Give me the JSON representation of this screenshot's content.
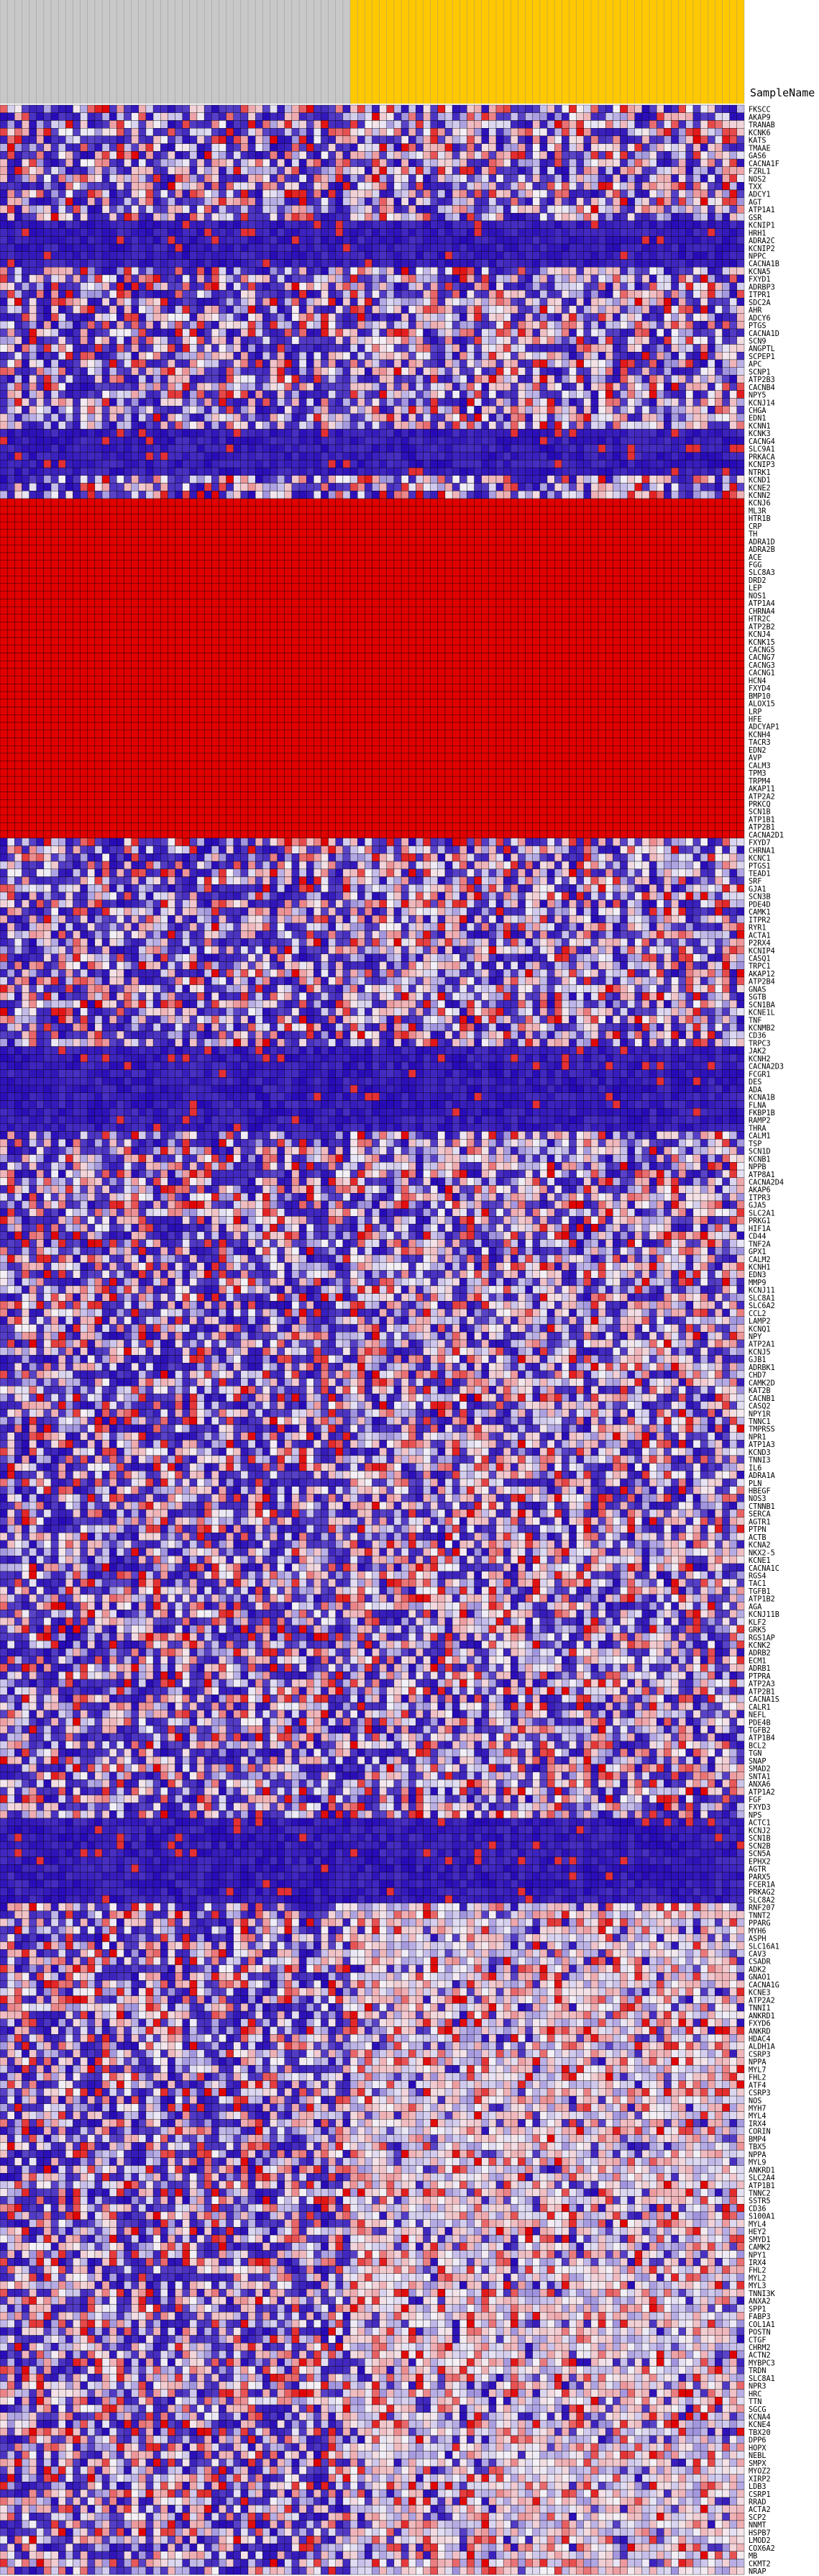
{
  "chart_data": {
    "type": "heatmap",
    "row_header": "SampleName",
    "colors": {
      "low": "#1e00b4",
      "mid": "#f4f2f8",
      "high": "#e00000",
      "group_a_bar": "#c8c8c8",
      "group_b_bar": "#ffc800",
      "grid": "#000000"
    },
    "column_groups": [
      {
        "name": "",
        "count": 48,
        "color": "#c8c8c8"
      },
      {
        "name": "",
        "count": 54,
        "color": "#ffc800"
      }
    ],
    "rows": [
      "FKSCC",
      "AKAP9",
      "TRANAB",
      "KCNK6",
      "KATS",
      "TMAAE",
      "GAS6",
      "CACNA1F",
      "FZRL1",
      "NOS2",
      "TXX",
      "ADCY1",
      "AGT",
      "ATP1A1",
      "GSR",
      "KCNIP1",
      "HRH1",
      "ADRA2C",
      "KCNIP2",
      "NPPC",
      "CACNA1B",
      "KCNA5",
      "FXYD1",
      "ADRBP3",
      "ITPR1",
      "SDC2A",
      "AHR",
      "ADCY6",
      "PTGS",
      "CACNA1D",
      "SCN9",
      "ANGPTL",
      "SCPEP1",
      "APC",
      "SCNP1",
      "ATP2B3",
      "CACNB4",
      "NPY5",
      "KCNJ14",
      "CHGA",
      "EDN1",
      "KCNN1",
      "KCNK3",
      "CACNG4",
      "SLC9A1",
      "PRKACA",
      "KCNIP3",
      "NTRK1",
      "KCND1",
      "KCNE2",
      "KCNN2",
      "KCNJ6",
      "ML3R",
      "HTR1B",
      "CRP",
      "TH",
      "ADRA1D",
      "ADRA2B",
      "ACE",
      "FGG",
      "SLC8A3",
      "DRD2",
      "LEP",
      "NOS1",
      "ATP1A4",
      "CHRNA4",
      "HTR2C",
      "ATP2B2",
      "KCNJ4",
      "KCNK15",
      "CACNG5",
      "CACNG7",
      "CACNG3",
      "CACNG1",
      "HCN4",
      "FXYD4",
      "BMP10",
      "ALOX15",
      "LRP",
      "HFE",
      "ADCYAP1",
      "KCNH4",
      "TACR3",
      "EDN2",
      "AVP",
      "CALM3",
      "TPM3",
      "TRPM4",
      "AKAP11",
      "ATP2A2",
      "PRKCQ",
      "SCN1B",
      "ATP1B1",
      "ATP2B1",
      "CACNA2D1",
      "FXYD7",
      "CHRNA1",
      "KCNC1",
      "PTGS1",
      "TEAD1",
      "SRF",
      "GJA1",
      "SCN3B",
      "PDE4D",
      "CAMK1",
      "ITPR2",
      "RYR1",
      "ACTA1",
      "P2RX4",
      "KCNIP4",
      "CASQ1",
      "TRPC1",
      "AKAP12",
      "ATP2B4",
      "GNAS",
      "SGTB",
      "SCN1BA",
      "KCNE1L",
      "TNF",
      "KCNMB2",
      "CD36",
      "TRPC3",
      "JAK2",
      "KCNH2",
      "CACNA2D3",
      "FCGR1",
      "DES",
      "ADA",
      "KCNA1B",
      "FLNA",
      "FKBP1B",
      "RAMP2",
      "THRA",
      "CALM1",
      "TSP",
      "SCN1D",
      "KCNB1",
      "NPPB",
      "ATP8A1",
      "CACNA2D4",
      "AKAP6",
      "ITPR3",
      "GJA5",
      "SLC2A1",
      "PRKG1",
      "HIF1A",
      "CD44",
      "TNF2A",
      "GPX1",
      "CALM2",
      "KCNH1",
      "EDN3",
      "MMP9",
      "KCNJ11",
      "SLC8A1",
      "SLC6A2",
      "CCL2",
      "LAMP2",
      "KCNQ1",
      "NPY",
      "ATP2A1",
      "KCNJ5",
      "GJB1",
      "ADRBK1",
      "CHD7",
      "CAMK2D",
      "KAT2B",
      "CACNB1",
      "CASQ2",
      "NPY1R",
      "TNNC1",
      "TMPRSS",
      "NPR1",
      "ATP1A3",
      "KCND3",
      "TNNI3",
      "IL6",
      "ADRA1A",
      "PLN",
      "HBEGF",
      "NOS3",
      "CTNNB1",
      "SERCA",
      "AGTR1",
      "PTPN",
      "ACTB",
      "KCNA2",
      "NKX2-5",
      "KCNE1",
      "CACNA1C",
      "RGS4",
      "TAC1",
      "TGFB1",
      "ATP1B2",
      "AGA",
      "KCNJ11B",
      "KLF2",
      "GRK5",
      "RGS1AP",
      "KCNK2",
      "ADRB2",
      "ECM1",
      "ADRB1",
      "PTPRA",
      "ATP2A3",
      "ATP2B1",
      "CACNA1S",
      "CALR1",
      "NEFL",
      "PDE4B",
      "TGFB2",
      "ATP1B4",
      "BCL2",
      "TGN",
      "SNAP",
      "SMAD2",
      "SNTA1",
      "ANXA6",
      "ATP1A2",
      "FGF",
      "FXYD3",
      "NPS",
      "ACTC1",
      "KCNJ2",
      "SCN1B",
      "SCN2B",
      "SCN5A",
      "EPHX2",
      "AGTR",
      "PARX5",
      "FCER1A",
      "PRKAG2",
      "SLC8A2",
      "RNF207",
      "TNNT2",
      "PPARG",
      "MYH6",
      "ASPH",
      "SLC16A1",
      "CAV3",
      "CSADR",
      "ADK2",
      "GNAO1",
      "CACNA1G",
      "KCNE3",
      "ATP2A2",
      "TNNI1",
      "ANKRD1",
      "FXYD6",
      "ANKRD",
      "HDAC4",
      "ALDH1A",
      "CSRP3",
      "NPPA",
      "MYL7",
      "FHL2",
      "ATF4",
      "CSRP3",
      "NOS",
      "MYH7",
      "MYL4",
      "IRX4",
      "CORIN",
      "BMP4",
      "TBX5",
      "NPPA",
      "MYL9",
      "ANKRD1",
      "SLC2A4",
      "ATP1B1",
      "TNNC2",
      "SSTR5",
      "CD36",
      "S100A1",
      "MYL4",
      "HEY2",
      "SMYD1",
      "CAMK2",
      "NPY1",
      "IRX4",
      "FHL2",
      "MYL2",
      "MYL3",
      "TNNI3K",
      "ANXA2",
      "SPP1",
      "FABP3",
      "COL1A1",
      "POSTN",
      "CTGF",
      "CHRM2",
      "ACTN2",
      "MYBPC3",
      "TRDN",
      "SLC8A1",
      "NPR3",
      "HRC",
      "TTN",
      "SGCG",
      "KCNA4",
      "KCNE4",
      "TBX20",
      "DPP6",
      "HOPX",
      "NEBL",
      "SMPX",
      "MYOZ2",
      "XIRP2",
      "LDB3",
      "CSRP1",
      "RRAD",
      "ACTA2",
      "SCP2",
      "NNMT",
      "HSPB7",
      "LMOD2",
      "COX6A2",
      "MB",
      "CKMT2",
      "NRAP"
    ]
  }
}
